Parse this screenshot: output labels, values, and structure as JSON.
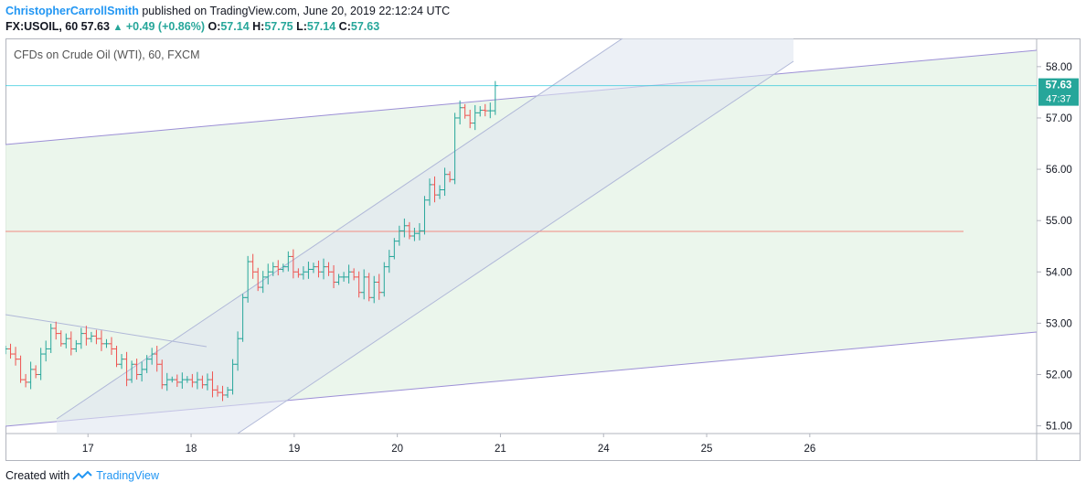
{
  "header": {
    "author": "ChristopherCarrollSmith",
    "published": "published on TradingView.com, June 20, 2019 22:12:24 UTC",
    "symbol": "FX:USOIL, 60",
    "price": "57.63",
    "change": "+0.49 (+0.86%)",
    "o_label": "O:",
    "o_value": "57.14",
    "h_label": "H:",
    "h_value": "57.75",
    "l_label": "L:",
    "l_value": "57.14",
    "c_label": "C:",
    "c_value": "57.63"
  },
  "footer": {
    "created_with": "Created with",
    "brand": "TradingView"
  },
  "chart_data": {
    "type": "ohlc",
    "title": "CFDs on Crude Oil (WTI), 60, FXCM",
    "ylim": [
      50.85,
      58.55
    ],
    "xlim": [
      -0.8,
      9.2
    ],
    "y_ticks": [
      "51.00",
      "52.00",
      "53.00",
      "54.00",
      "55.00",
      "56.00",
      "57.00",
      "58.00"
    ],
    "x_ticks": [
      {
        "label": "17",
        "x": 0
      },
      {
        "label": "18",
        "x": 1
      },
      {
        "label": "19",
        "x": 2
      },
      {
        "label": "20",
        "x": 3
      },
      {
        "label": "21",
        "x": 4
      },
      {
        "label": "24",
        "x": 5
      },
      {
        "label": "25",
        "x": 6
      },
      {
        "label": "26",
        "x": 7
      }
    ],
    "last_price": 57.63,
    "last_price_label": "57.63",
    "countdown_label": "47:37",
    "colors": {
      "up": "#26a69a",
      "down": "#ef5350",
      "accent": "#2196f3",
      "channel": "#9c8fd6",
      "hline": "#f28b82"
    },
    "closes": [
      52.5,
      52.4,
      52.3,
      51.9,
      51.85,
      52.1,
      52.0,
      52.4,
      52.5,
      52.9,
      52.8,
      52.6,
      52.7,
      52.5,
      52.6,
      52.8,
      52.7,
      52.75,
      52.7,
      52.6,
      52.6,
      52.5,
      52.2,
      52.3,
      51.9,
      52.2,
      52.0,
      52.1,
      52.3,
      52.4,
      52.2,
      51.8,
      51.9,
      51.9,
      51.85,
      51.9,
      51.9,
      51.85,
      51.9,
      51.8,
      51.9,
      51.7,
      51.65,
      51.6,
      51.7,
      52.2,
      52.7,
      53.5,
      54.2,
      54.0,
      53.7,
      53.9,
      54.0,
      54.1,
      54.05,
      54.1,
      54.3,
      54.0,
      53.95,
      54.0,
      54.05,
      54.1,
      54.0,
      54.1,
      54.0,
      53.8,
      53.9,
      53.9,
      54.0,
      53.9,
      53.6,
      53.9,
      53.5,
      53.8,
      53.6,
      54.1,
      54.3,
      54.6,
      54.8,
      54.9,
      54.7,
      54.75,
      54.8,
      55.4,
      55.7,
      55.5,
      55.6,
      55.9,
      55.8,
      57.0,
      57.2,
      57.05,
      56.9,
      57.1,
      57.15,
      57.14,
      57.14,
      57.63
    ]
  }
}
